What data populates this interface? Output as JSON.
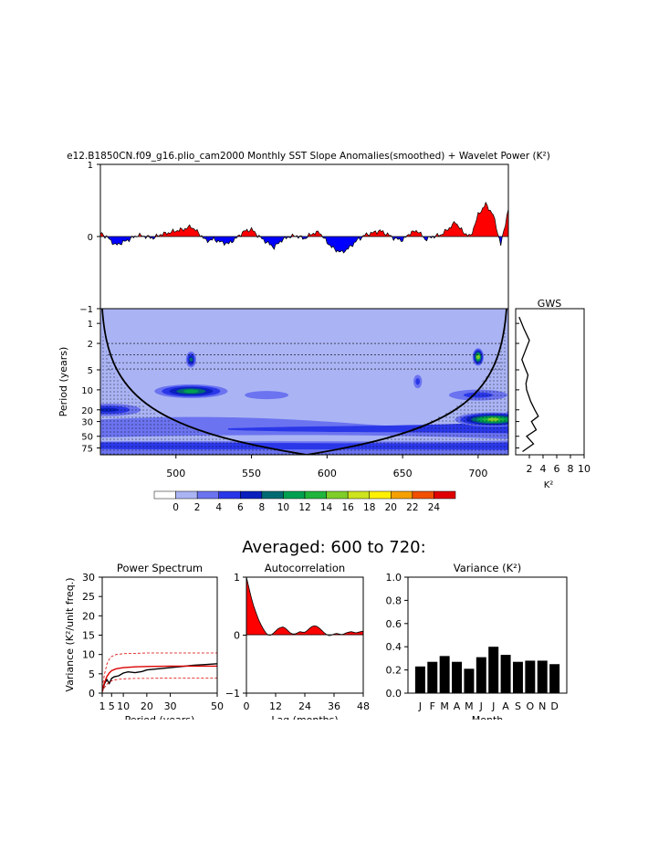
{
  "title": "e12.B1850CN.f09_g16.plio_cam2000 Monthly SST Slope Anomalies(smoothed) + Wavelet Power (K²)",
  "chart_data": [
    {
      "id": "timeseries",
      "type": "area",
      "x_range": [
        450,
        720
      ],
      "ylim": [
        -1,
        1
      ],
      "yticks": [
        "1",
        "0",
        "−1"
      ],
      "pos_color": "#ff0000",
      "neg_color": "#0000ff",
      "x": [
        450,
        455,
        460,
        465,
        470,
        475,
        480,
        485,
        490,
        495,
        500,
        505,
        510,
        515,
        520,
        525,
        530,
        535,
        540,
        545,
        550,
        555,
        560,
        565,
        570,
        575,
        580,
        585,
        590,
        595,
        600,
        605,
        610,
        615,
        620,
        625,
        630,
        635,
        640,
        645,
        650,
        655,
        660,
        665,
        670,
        675,
        680,
        685,
        690,
        695,
        700,
        705,
        710,
        715,
        720
      ],
      "y": [
        0.05,
        -0.02,
        -0.12,
        -0.08,
        -0.03,
        0.02,
        0.0,
        -0.02,
        0.03,
        0.05,
        0.08,
        0.1,
        0.14,
        0.05,
        -0.06,
        -0.04,
        -0.08,
        -0.1,
        -0.02,
        0.07,
        0.1,
        0.0,
        -0.08,
        -0.15,
        -0.05,
        0.0,
        0.01,
        -0.03,
        0.04,
        0.06,
        -0.08,
        -0.18,
        -0.22,
        -0.15,
        -0.05,
        0.02,
        0.05,
        0.08,
        0.03,
        -0.03,
        -0.05,
        0.05,
        0.08,
        -0.04,
        0.0,
        0.02,
        0.1,
        0.2,
        0.06,
        0.0,
        0.3,
        0.45,
        0.3,
        -0.12,
        0.38
      ]
    },
    {
      "id": "wavelet",
      "type": "heatmap",
      "title": "",
      "x_range": [
        450,
        720
      ],
      "xticks": [
        "500",
        "550",
        "600",
        "650",
        "700"
      ],
      "ylabel": "Period (years)",
      "yticks": [
        "1",
        "2",
        "5",
        "10",
        "20",
        "30",
        "50",
        "75"
      ],
      "colorbar_labels": [
        "0",
        "2",
        "4",
        "6",
        "8",
        "10",
        "12",
        "14",
        "16",
        "18",
        "20",
        "22",
        "24"
      ],
      "colorbar_colors": [
        "#ffffff",
        "#aab4f4",
        "#6b73f0",
        "#2a37e8",
        "#0a1fbd",
        "#006a72",
        "#00a050",
        "#20b43c",
        "#7fcd28",
        "#cde41e",
        "#fff000",
        "#f5a000",
        "#f25000",
        "#e00000"
      ],
      "blobs": [
        {
          "x": 510,
          "period": 10.5,
          "level": 6
        },
        {
          "x": 510,
          "period": 3.5,
          "level": 5
        },
        {
          "x": 700,
          "period": 3.2,
          "level": 8
        },
        {
          "x": 700,
          "period": 12,
          "level": 3
        },
        {
          "x": 455,
          "period": 20,
          "level": 4
        },
        {
          "x": 710,
          "period": 28,
          "level": 8
        },
        {
          "x": 560,
          "period": 12,
          "level": 2
        },
        {
          "x": 660,
          "period": 7.5,
          "level": 3
        }
      ]
    },
    {
      "id": "gws",
      "type": "line",
      "title": "GWS",
      "xlabel": "K²",
      "xticks": [
        "2",
        "4",
        "6",
        "8",
        "10"
      ],
      "xlim": [
        0,
        10
      ],
      "x": [
        0.5,
        1.2,
        2,
        1.4,
        0.9,
        1.3,
        1.8,
        1.5,
        1.6,
        2.2,
        2.8,
        3.3,
        2.3,
        3,
        1.6,
        2.6,
        1.0
      ],
      "y_period": [
        0.8,
        1.2,
        1.8,
        2.6,
        3.5,
        4.5,
        6,
        8,
        10,
        15,
        20,
        25,
        30,
        40,
        50,
        65,
        85
      ]
    },
    {
      "id": "power_spectrum",
      "type": "line",
      "title": "Power Spectrum",
      "xlabel": "Period (years)",
      "ylabel": "Variance (K²/unit freq.)",
      "xticks": [
        "1",
        "5",
        "10",
        "20",
        "30",
        "50"
      ],
      "yticks": [
        "0",
        "5",
        "10",
        "15",
        "20",
        "25",
        "30"
      ],
      "ylim": [
        0,
        30
      ],
      "xlim": [
        1,
        50
      ],
      "series": [
        {
          "x": [
            1,
            2,
            3,
            4,
            5,
            6,
            8,
            10,
            12,
            15,
            18,
            20,
            25,
            30,
            35,
            40,
            45,
            50
          ],
          "y": [
            0.5,
            2.5,
            3.5,
            2.5,
            3.8,
            4.2,
            4.5,
            5.2,
            5.5,
            5.3,
            5.6,
            6.0,
            6.3,
            6.6,
            6.9,
            7.2,
            7.4,
            7.6
          ],
          "color": "#000000",
          "dash": false
        },
        {
          "x": [
            1,
            2,
            3,
            4,
            5,
            7,
            10,
            15,
            20,
            30,
            40,
            50
          ],
          "y": [
            0.8,
            2.8,
            4.3,
            5.2,
            5.8,
            6.3,
            6.6,
            6.8,
            6.9,
            7.0,
            7.0,
            7.0
          ],
          "color": "#dd0000",
          "dash": false
        },
        {
          "x": [
            1,
            2,
            3,
            4,
            5,
            7,
            10,
            15,
            20,
            30,
            40,
            50
          ],
          "y": [
            1.5,
            5.0,
            7.5,
            8.8,
            9.5,
            10.0,
            10.2,
            10.3,
            10.4,
            10.4,
            10.4,
            10.4
          ],
          "color": "#dd0000",
          "dash": true
        },
        {
          "x": [
            1,
            2,
            3,
            4,
            5,
            7,
            10,
            15,
            20,
            30,
            40,
            50
          ],
          "y": [
            0.2,
            1.5,
            2.3,
            2.8,
            3.2,
            3.5,
            3.7,
            3.8,
            3.8,
            3.9,
            3.9,
            3.9
          ],
          "color": "#dd0000",
          "dash": true
        }
      ]
    },
    {
      "id": "autocorrelation",
      "type": "area",
      "title": "Autocorrelation",
      "xlabel": "Lag (months)",
      "xticks": [
        "0",
        "12",
        "24",
        "36",
        "48"
      ],
      "yticks": [
        "1",
        "0",
        "−1"
      ],
      "ylim": [
        -1,
        1
      ],
      "xlim": [
        0,
        48
      ],
      "x": [
        0,
        1,
        2,
        3,
        4,
        5,
        6,
        7,
        8,
        9,
        10,
        11,
        12,
        13,
        14,
        15,
        16,
        17,
        18,
        19,
        20,
        21,
        22,
        23,
        24,
        25,
        26,
        27,
        28,
        29,
        30,
        31,
        32,
        33,
        34,
        35,
        36,
        37,
        38,
        39,
        40,
        41,
        42,
        43,
        44,
        45,
        46,
        47,
        48
      ],
      "y": [
        1.0,
        0.82,
        0.65,
        0.5,
        0.38,
        0.27,
        0.18,
        0.1,
        0.04,
        0.0,
        0.0,
        0.03,
        0.07,
        0.11,
        0.13,
        0.14,
        0.12,
        0.08,
        0.04,
        0.02,
        0.02,
        0.04,
        0.06,
        0.05,
        0.05,
        0.08,
        0.12,
        0.15,
        0.16,
        0.15,
        0.12,
        0.08,
        0.04,
        0.01,
        -0.01,
        0.0,
        0.02,
        0.03,
        0.02,
        0.01,
        0.02,
        0.04,
        0.05,
        0.06,
        0.05,
        0.04,
        0.05,
        0.06,
        0.07
      ]
    },
    {
      "id": "variance",
      "type": "bar",
      "title": "Variance (K²)",
      "xlabel": "Month",
      "categories": [
        "J",
        "F",
        "M",
        "A",
        "M",
        "J",
        "J",
        "A",
        "S",
        "O",
        "N",
        "D"
      ],
      "values": [
        0.23,
        0.27,
        0.32,
        0.27,
        0.21,
        0.31,
        0.4,
        0.33,
        0.27,
        0.28,
        0.28,
        0.25
      ],
      "yticks": [
        "0.0",
        "0.2",
        "0.4",
        "0.6",
        "0.8",
        "1.0"
      ],
      "ylim": [
        0,
        1
      ]
    }
  ],
  "averaged_label": "Averaged: 600 to 720:"
}
